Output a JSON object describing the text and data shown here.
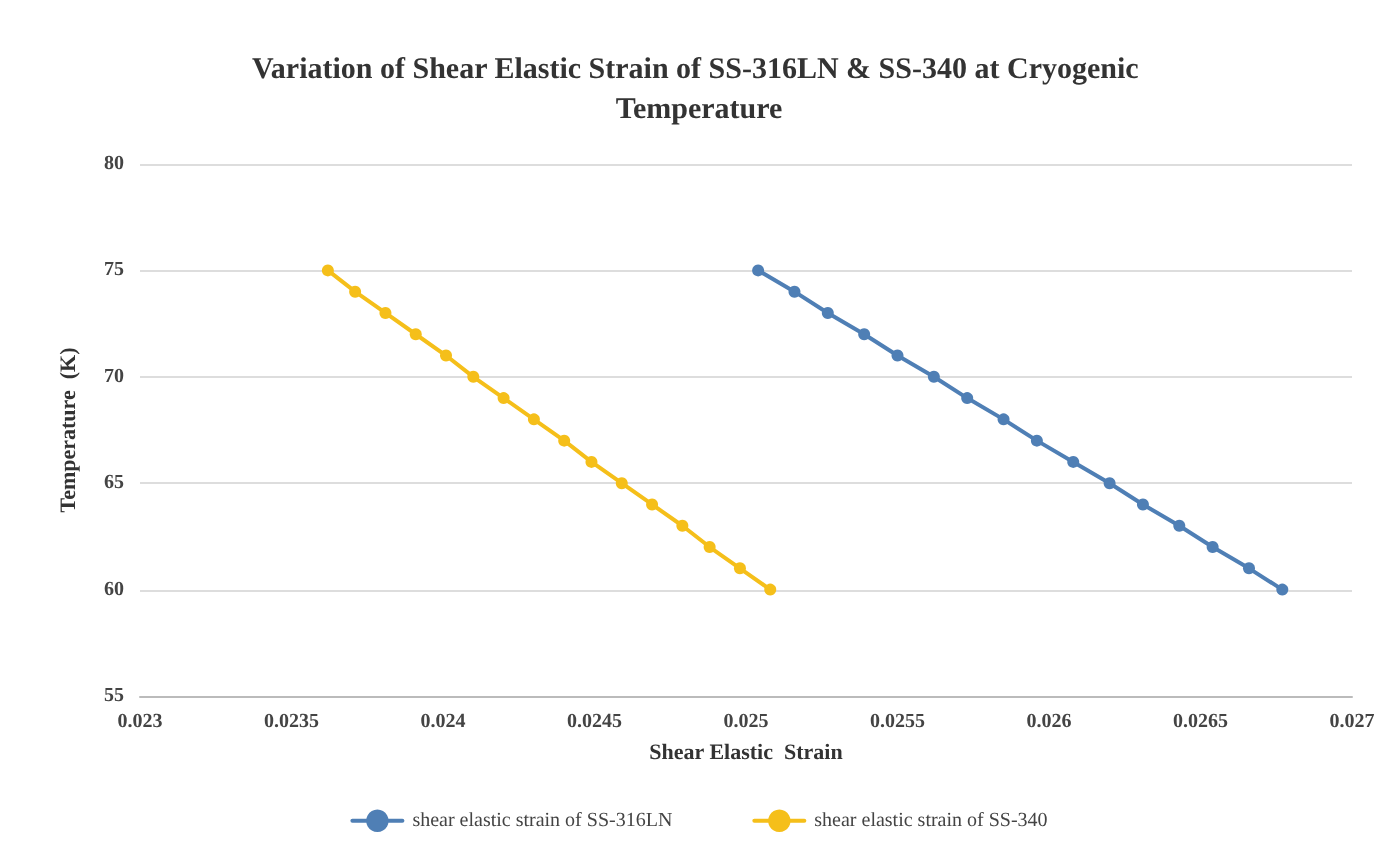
{
  "chart_data": {
    "type": "line",
    "title": "Variation of Shear Elastic Strain of SS-316LN & SS-340 at Cryogenic Temperature",
    "xlabel": "Shear Elastic  Strain",
    "ylabel": "Temperature  (K)",
    "series": [
      {
        "name": "shear elastic strain of SS-316LN",
        "color": "#4f7fb5",
        "x": [
          0.02677,
          0.02666,
          0.02654,
          0.02643,
          0.02631,
          0.0262,
          0.02608,
          0.02596,
          0.02585,
          0.02573,
          0.02562,
          0.0255,
          0.02539,
          0.02527,
          0.02516,
          0.02504
        ],
        "values": [
          60,
          61,
          62,
          63,
          64,
          65,
          66,
          67,
          68,
          69,
          70,
          71,
          72,
          73,
          74,
          75
        ]
      },
      {
        "name": "shear elastic strain of SS-340",
        "color": "#f5bf1a",
        "x": [
          0.02508,
          0.02498,
          0.02488,
          0.02479,
          0.02469,
          0.02459,
          0.02449,
          0.0244,
          0.0243,
          0.0242,
          0.0241,
          0.02401,
          0.02391,
          0.02381,
          0.02371,
          0.02362
        ],
        "values": [
          60,
          61,
          62,
          63,
          64,
          65,
          66,
          67,
          68,
          69,
          70,
          71,
          72,
          73,
          74,
          75
        ]
      }
    ],
    "xlim": [
      0.023,
      0.027
    ],
    "xticks": [
      0.023,
      0.0235,
      0.024,
      0.0245,
      0.025,
      0.0255,
      0.026,
      0.0265,
      0.027
    ],
    "ylim": [
      55,
      80
    ],
    "yticks": [
      55,
      60,
      65,
      70,
      75,
      80
    ],
    "grid": "y",
    "legend": "bottom",
    "marker": "circle",
    "line_style": "solid"
  }
}
